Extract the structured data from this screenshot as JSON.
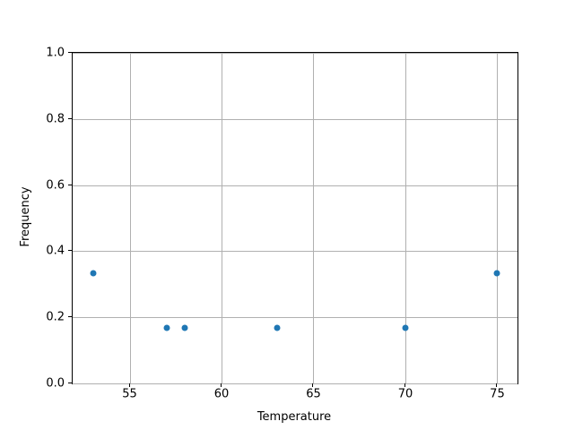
{
  "chart_data": {
    "type": "scatter",
    "title": "",
    "xlabel": "Temperature",
    "ylabel": "Frequency",
    "x": [
      53,
      57,
      58,
      63,
      70,
      75
    ],
    "y": [
      0.333,
      0.167,
      0.167,
      0.167,
      0.167,
      0.333
    ],
    "xlim": [
      51.9,
      76.1
    ],
    "ylim": [
      0.0,
      1.0
    ],
    "xticks": [
      55,
      60,
      65,
      70,
      75
    ],
    "xtick_labels": [
      "55",
      "60",
      "65",
      "70",
      "75"
    ],
    "yticks": [
      0.0,
      0.2,
      0.4,
      0.6,
      0.8,
      1.0
    ],
    "ytick_labels": [
      "0.0",
      "0.2",
      "0.4",
      "0.6",
      "0.8",
      "1.0"
    ],
    "grid": true,
    "legend": "none",
    "marker_color": "#1f77b4",
    "grid_color": "#b0b0b0",
    "spine_color": "#000000",
    "background_color": "#ffffff"
  }
}
